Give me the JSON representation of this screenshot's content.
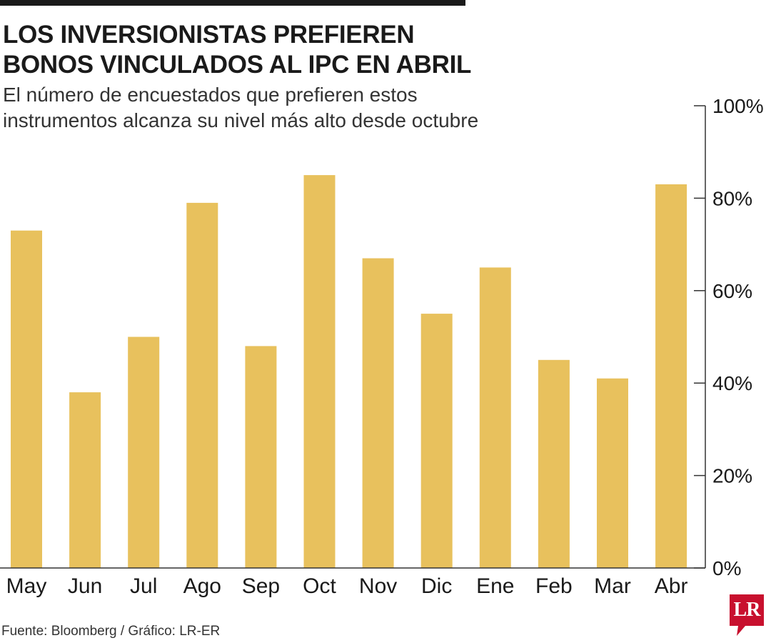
{
  "chart_data": {
    "type": "bar",
    "title": "LOS INVERSIONISTAS PREFIEREN BONOS VINCULADOS AL IPC EN ABRIL",
    "title_lines": [
      "LOS INVERSIONISTAS PREFIEREN",
      "BONOS VINCULADOS AL IPC EN ABRIL"
    ],
    "subtitle_lines": [
      "El número de encuestados que prefieren estos",
      "instrumentos alcanza su nivel más alto desde octubre"
    ],
    "categories": [
      "May",
      "Jun",
      "Jul",
      "Ago",
      "Sep",
      "Oct",
      "Nov",
      "Dic",
      "Ene",
      "Feb",
      "Mar",
      "Abr"
    ],
    "values": [
      73,
      38,
      50,
      79,
      48,
      85,
      67,
      55,
      65,
      45,
      41,
      83
    ],
    "ylim": [
      0,
      100
    ],
    "yticks": [
      0,
      20,
      40,
      60,
      80,
      100
    ],
    "ytick_labels": [
      "0%",
      "20%",
      "40%",
      "60%",
      "80%",
      "100%"
    ],
    "xlabel": "",
    "ylabel": "",
    "axis_side": "right",
    "grid": false
  },
  "footer": {
    "source": "Fuente: Bloomberg / Gráfico: LR-ER",
    "logo_text": "LR"
  },
  "colors": {
    "bar": "#E8C15D",
    "text": "#1a1a1a",
    "axis": "#333333",
    "logo": "#C8102E",
    "top_bar": "#1a1a1a"
  }
}
